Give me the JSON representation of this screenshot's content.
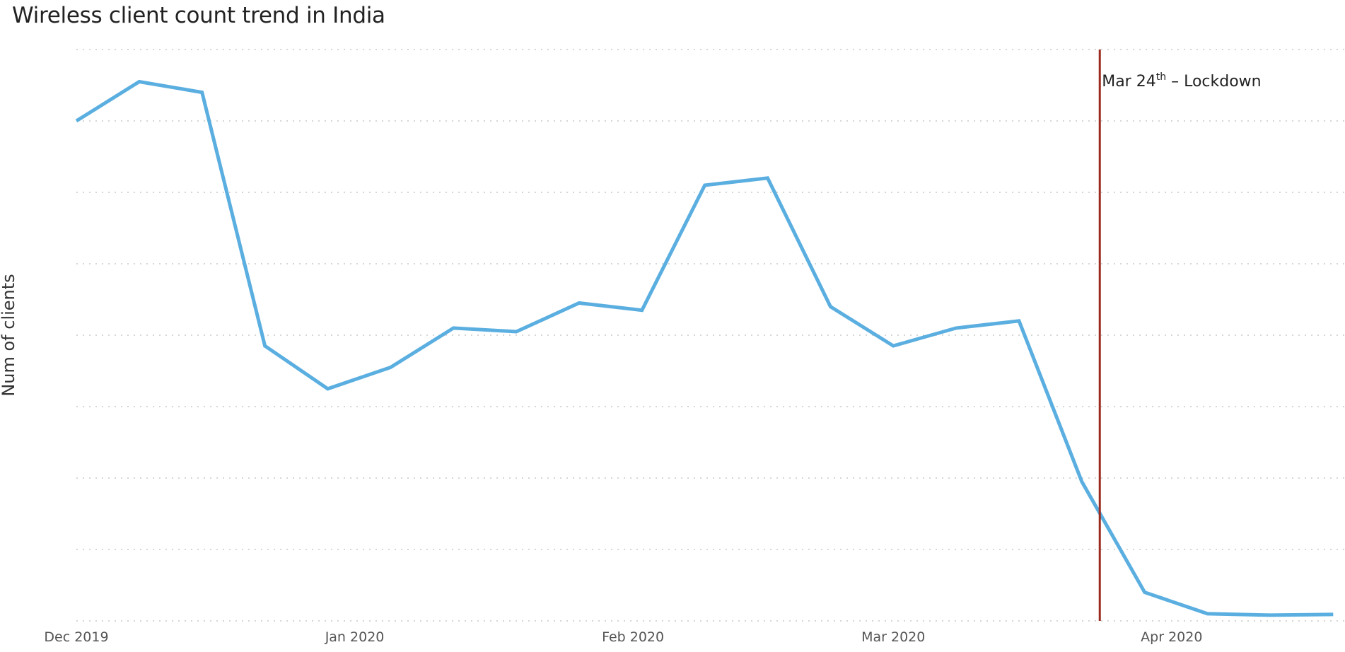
{
  "chart_data": {
    "type": "line",
    "title": "Wireless client count trend in India",
    "xlabel": "",
    "ylabel": "Num of clients",
    "x_ticks": [
      "Dec 2019",
      "Jan 2020",
      "Feb 2020",
      "Mar 2020",
      "Apr 2020"
    ],
    "x": [
      "2019-12-01",
      "2019-12-08",
      "2019-12-15",
      "2019-12-22",
      "2019-12-29",
      "2020-01-05",
      "2020-01-12",
      "2020-01-19",
      "2020-01-26",
      "2020-02-02",
      "2020-02-09",
      "2020-02-16",
      "2020-02-23",
      "2020-03-01",
      "2020-03-08",
      "2020-03-15",
      "2020-03-22",
      "2020-03-29",
      "2020-04-05",
      "2020-04-12",
      "2020-04-19"
    ],
    "series": [
      {
        "values": [
          70,
          75.5,
          74,
          38.5,
          32.5,
          35.5,
          41,
          40.5,
          44.5,
          43.5,
          61,
          62,
          44,
          38.5,
          41,
          42,
          19.5,
          4,
          1,
          0.8,
          0.9
        ]
      }
    ],
    "ylim": [
      0,
      80
    ],
    "grid": true,
    "line_color": "#5aaee0",
    "annotations": [
      {
        "type": "vertical-line",
        "x": "2020-03-24",
        "text_main": "Mar 24",
        "text_sup": "th",
        "text_rest": " – Lockdown",
        "color": "#9b2a1f"
      }
    ]
  }
}
